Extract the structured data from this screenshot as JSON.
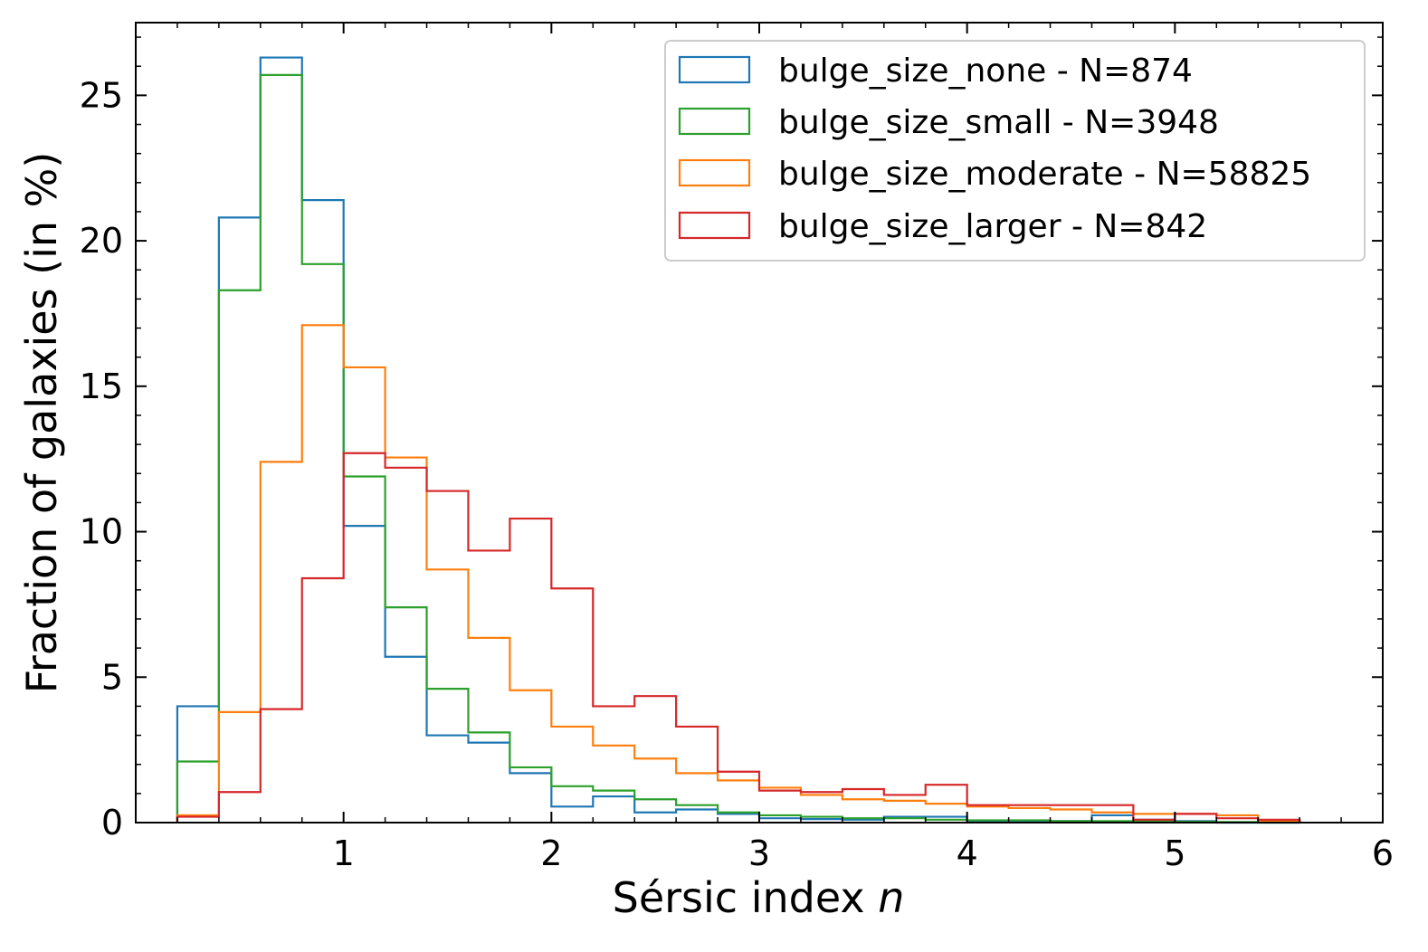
{
  "chart_data": {
    "type": "histogram",
    "xlabel": "Sérsic index",
    "xlabel_var": "n",
    "ylabel": "Fraction of galaxies (in %)",
    "xlim": [
      0,
      6
    ],
    "ylim": [
      0,
      27.5
    ],
    "xticks": [
      1,
      2,
      3,
      4,
      5,
      6
    ],
    "yticks": [
      0,
      5,
      10,
      15,
      20,
      25
    ],
    "bin_edges": [
      0.2,
      0.4,
      0.6,
      0.8,
      1.0,
      1.2,
      1.4,
      1.6,
      1.8,
      2.0,
      2.2,
      2.4,
      2.6,
      2.8,
      3.0,
      3.2,
      3.4,
      3.6,
      3.8,
      4.0,
      4.2,
      4.4,
      4.6,
      4.8,
      5.0,
      5.2,
      5.4,
      5.6
    ],
    "legend_position": "top-right",
    "series": [
      {
        "name": "bulge_size_none - N=874",
        "color": "#1f77b4",
        "values": [
          4.0,
          20.8,
          26.3,
          21.4,
          10.2,
          5.7,
          3.0,
          2.75,
          1.7,
          0.55,
          0.9,
          0.35,
          0.45,
          0.3,
          0.15,
          0.12,
          0.1,
          0.2,
          0.2,
          0.05,
          0.05,
          0.05,
          0.25,
          0.1,
          0.05,
          0.0,
          0.0
        ]
      },
      {
        "name": "bulge_size_small - N=3948",
        "color": "#2ca02c",
        "values": [
          2.1,
          18.3,
          25.7,
          19.2,
          11.9,
          7.4,
          4.6,
          3.1,
          1.9,
          1.25,
          1.1,
          0.8,
          0.6,
          0.35,
          0.25,
          0.2,
          0.15,
          0.15,
          0.1,
          0.08,
          0.08,
          0.05,
          0.05,
          0.05,
          0.03,
          0.02,
          0.0
        ]
      },
      {
        "name": "bulge_size_moderate - N=58825",
        "color": "#ff7f0e",
        "values": [
          0.25,
          3.8,
          12.4,
          17.1,
          15.65,
          12.55,
          8.7,
          6.35,
          4.55,
          3.3,
          2.65,
          2.2,
          1.7,
          1.45,
          1.2,
          0.95,
          0.8,
          0.75,
          0.65,
          0.55,
          0.5,
          0.45,
          0.35,
          0.3,
          0.3,
          0.25,
          0.05
        ]
      },
      {
        "name": "bulge_size_larger - N=842",
        "color": "#d62728",
        "values": [
          0.2,
          1.05,
          3.9,
          8.4,
          12.7,
          12.2,
          11.4,
          9.35,
          10.45,
          8.05,
          4.0,
          4.35,
          3.3,
          1.75,
          1.1,
          1.05,
          1.15,
          0.95,
          1.3,
          0.6,
          0.6,
          0.6,
          0.6,
          0.1,
          0.3,
          0.15,
          0.1
        ]
      }
    ]
  }
}
